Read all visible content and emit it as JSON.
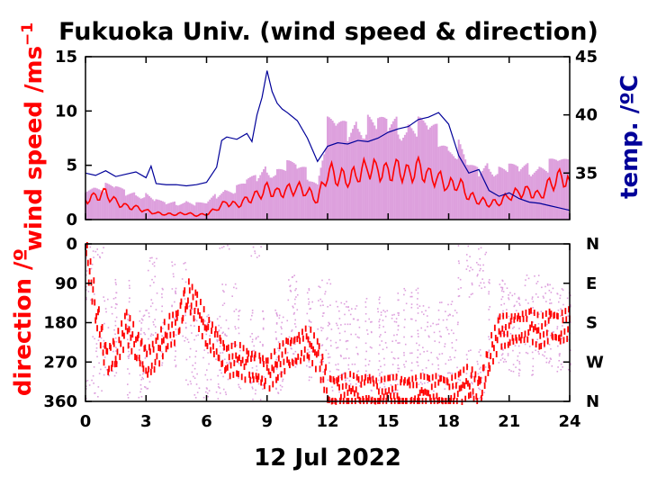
{
  "colors": {
    "wind_line": "#ff0000",
    "gust_fill": "#dda0dd",
    "temp_line": "#000099",
    "axis": "#000000",
    "grid": "#cccccc"
  },
  "chart_data": [
    {
      "type": "line",
      "title": "Fukuoka Univ. (wind speed & direction)",
      "xlabel": "12 Jul 2022",
      "ylabel": "wind speed /ms",
      "ylabel_superscript": "−1",
      "y2label": "temp. /ºC",
      "xlim": [
        0,
        24
      ],
      "ylim": [
        0,
        15
      ],
      "y2lim": [
        31,
        45
      ],
      "x_ticks": [
        "0",
        "3",
        "6",
        "9",
        "12",
        "15",
        "18",
        "21",
        "24"
      ],
      "y_ticks": [
        "0",
        "5",
        "10",
        "15"
      ],
      "y2_ticks": [
        "35",
        "40",
        "45"
      ],
      "grid": false,
      "series": [
        {
          "kind": "wind-speed",
          "axis": "left",
          "x": [
            0,
            0.5,
            1,
            1.5,
            2,
            2.5,
            3,
            3.5,
            4,
            4.5,
            5,
            5.5,
            6,
            6.5,
            7,
            7.5,
            8,
            8.5,
            9,
            9.5,
            10,
            10.5,
            11,
            11.5,
            12,
            12.5,
            13,
            13.5,
            14,
            14.5,
            15,
            15.5,
            16,
            16.5,
            17,
            17.5,
            18,
            18.5,
            19,
            19.5,
            20,
            20.5,
            21,
            21.5,
            22,
            22.5,
            23,
            23.5,
            24
          ],
          "values": [
            1.8,
            2.1,
            2.4,
            1.6,
            1.2,
            1.1,
            0.8,
            0.6,
            0.5,
            0.5,
            0.6,
            0.4,
            0.5,
            1.0,
            1.6,
            1.3,
            1.8,
            2.2,
            2.8,
            2.4,
            2.7,
            2.9,
            2.6,
            1.8,
            4.5,
            4.0,
            3.8,
            4.2,
            4.8,
            4.5,
            4.3,
            4.6,
            4.1,
            4.7,
            4.0,
            3.8,
            3.1,
            3.4,
            2.2,
            1.8,
            1.5,
            1.6,
            2.2,
            2.5,
            2.6,
            2.1,
            3.2,
            3.8,
            3.6
          ]
        },
        {
          "kind": "gust-envelope",
          "axis": "left",
          "x": [
            0,
            0.5,
            1,
            1.5,
            2,
            2.5,
            3,
            3.5,
            4,
            4.5,
            5,
            5.5,
            6,
            6.5,
            7,
            7.5,
            8,
            8.5,
            9,
            9.5,
            10,
            10.5,
            11,
            11.5,
            12,
            12.5,
            13,
            13.5,
            14,
            14.5,
            15,
            15.5,
            16,
            16.5,
            17,
            17.5,
            18,
            18.5,
            19,
            19.5,
            20,
            20.5,
            21,
            21.5,
            22,
            22.5,
            23,
            23.5,
            24
          ],
          "values": [
            3.3,
            3.2,
            3.4,
            3.2,
            2.7,
            2.6,
            2.5,
            1.9,
            1.6,
            1.7,
            1.8,
            1.6,
            1.6,
            2.5,
            3.0,
            3.2,
            3.8,
            4.2,
            5.2,
            4.8,
            5.5,
            5.2,
            4.8,
            3.5,
            9.5,
            9.3,
            9.0,
            9.6,
            9.8,
            9.5,
            9.4,
            9.7,
            9.2,
            9.5,
            9.0,
            8.8,
            7.0,
            7.4,
            5.2,
            4.8,
            5.5,
            5.0,
            5.2,
            5.0,
            5.3,
            5.2,
            5.6,
            5.8,
            5.5
          ]
        },
        {
          "kind": "temperature",
          "axis": "right",
          "x": [
            0,
            0.5,
            1,
            1.5,
            2,
            2.5,
            3,
            3.25,
            3.5,
            4,
            4.5,
            5,
            5.5,
            6,
            6.5,
            6.75,
            7,
            7.5,
            8,
            8.25,
            8.5,
            8.75,
            9,
            9.25,
            9.5,
            9.75,
            10,
            10.5,
            11,
            11.5,
            12,
            12.5,
            13,
            13.5,
            14,
            14.5,
            15,
            15.5,
            16,
            16.5,
            17,
            17.5,
            18,
            18.5,
            19,
            19.5,
            20,
            20.5,
            21,
            21.5,
            22,
            22.5,
            23,
            23.5,
            24
          ],
          "values": [
            35.0,
            34.8,
            35.2,
            34.7,
            34.9,
            35.1,
            34.6,
            35.6,
            34.1,
            34.0,
            34.0,
            33.9,
            34.0,
            34.2,
            35.5,
            37.8,
            38.1,
            37.9,
            38.4,
            37.7,
            40.0,
            41.5,
            43.8,
            42.0,
            41.0,
            40.5,
            40.2,
            39.5,
            38.0,
            36.0,
            37.3,
            37.6,
            37.5,
            37.8,
            37.7,
            38.0,
            38.5,
            38.8,
            39.0,
            39.6,
            39.8,
            40.2,
            39.2,
            36.5,
            35.0,
            35.3,
            33.5,
            33.0,
            33.3,
            32.8,
            32.5,
            32.4,
            32.2,
            32.0,
            31.8
          ]
        }
      ]
    },
    {
      "type": "scatter",
      "ylabel": "direction /º",
      "xlim": [
        0,
        24
      ],
      "ylim": [
        0,
        360
      ],
      "y_inverted": true,
      "x_ticks": [
        "0",
        "3",
        "6",
        "9",
        "12",
        "15",
        "18",
        "21",
        "24"
      ],
      "y_ticks": [
        "0",
        "90",
        "180",
        "270",
        "360"
      ],
      "compass_labels": [
        "N",
        "E",
        "S",
        "W",
        "N"
      ],
      "grid": false,
      "series": [
        {
          "kind": "direction-mean",
          "x": [
            0,
            0.5,
            1,
            1.5,
            2,
            2.5,
            3,
            3.5,
            4,
            4.5,
            5,
            5.5,
            6,
            6.5,
            7,
            7.5,
            8,
            8.5,
            9,
            9.5,
            10,
            10.5,
            11,
            11.5,
            12,
            12.5,
            13,
            13.5,
            14,
            14.5,
            15,
            15.5,
            16,
            16.5,
            17,
            17.5,
            18,
            18.5,
            19,
            19.5,
            20,
            20.5,
            21,
            21.5,
            22,
            22.5,
            23,
            23.5,
            24
          ],
          "values": [
            20,
            150,
            270,
            240,
            190,
            230,
            270,
            250,
            200,
            190,
            110,
            150,
            200,
            230,
            270,
            260,
            280,
            280,
            300,
            270,
            250,
            240,
            220,
            260,
            330,
            340,
            330,
            340,
            330,
            345,
            340,
            335,
            340,
            335,
            340,
            330,
            340,
            330,
            310,
            340,
            250,
            200,
            195,
            190,
            185,
            200,
            185,
            190,
            180
          ]
        },
        {
          "kind": "direction-scatter",
          "x": [
            0.1,
            1.2,
            2.4,
            3.3,
            4.1,
            5.2,
            6.3,
            7.1,
            8.4,
            9.1,
            10.2,
            11.4,
            12.3,
            13.1,
            14.2,
            15.3,
            16.1,
            17.2,
            18.1,
            18.8,
            19.6,
            20.3,
            21.2,
            22.1,
            23.3,
            0.6,
            1.8,
            2.9,
            4.6,
            5.7,
            6.8,
            7.9,
            9.6,
            10.7,
            11.8,
            12.7,
            13.8,
            14.7,
            15.8,
            16.7,
            17.8,
            19.2,
            20.7,
            21.8,
            22.8,
            23.7
          ],
          "values": [
            40,
            210,
            260,
            120,
            190,
            230,
            250,
            180,
            300,
            240,
            160,
            220,
            270,
            230,
            210,
            250,
            190,
            270,
            240,
            30,
            10,
            170,
            200,
            160,
            190,
            300,
            170,
            240,
            130,
            260,
            280,
            240,
            250,
            190,
            170,
            220,
            260,
            240,
            200,
            230,
            220,
            330,
            180,
            210,
            180,
            200
          ]
        }
      ]
    }
  ]
}
